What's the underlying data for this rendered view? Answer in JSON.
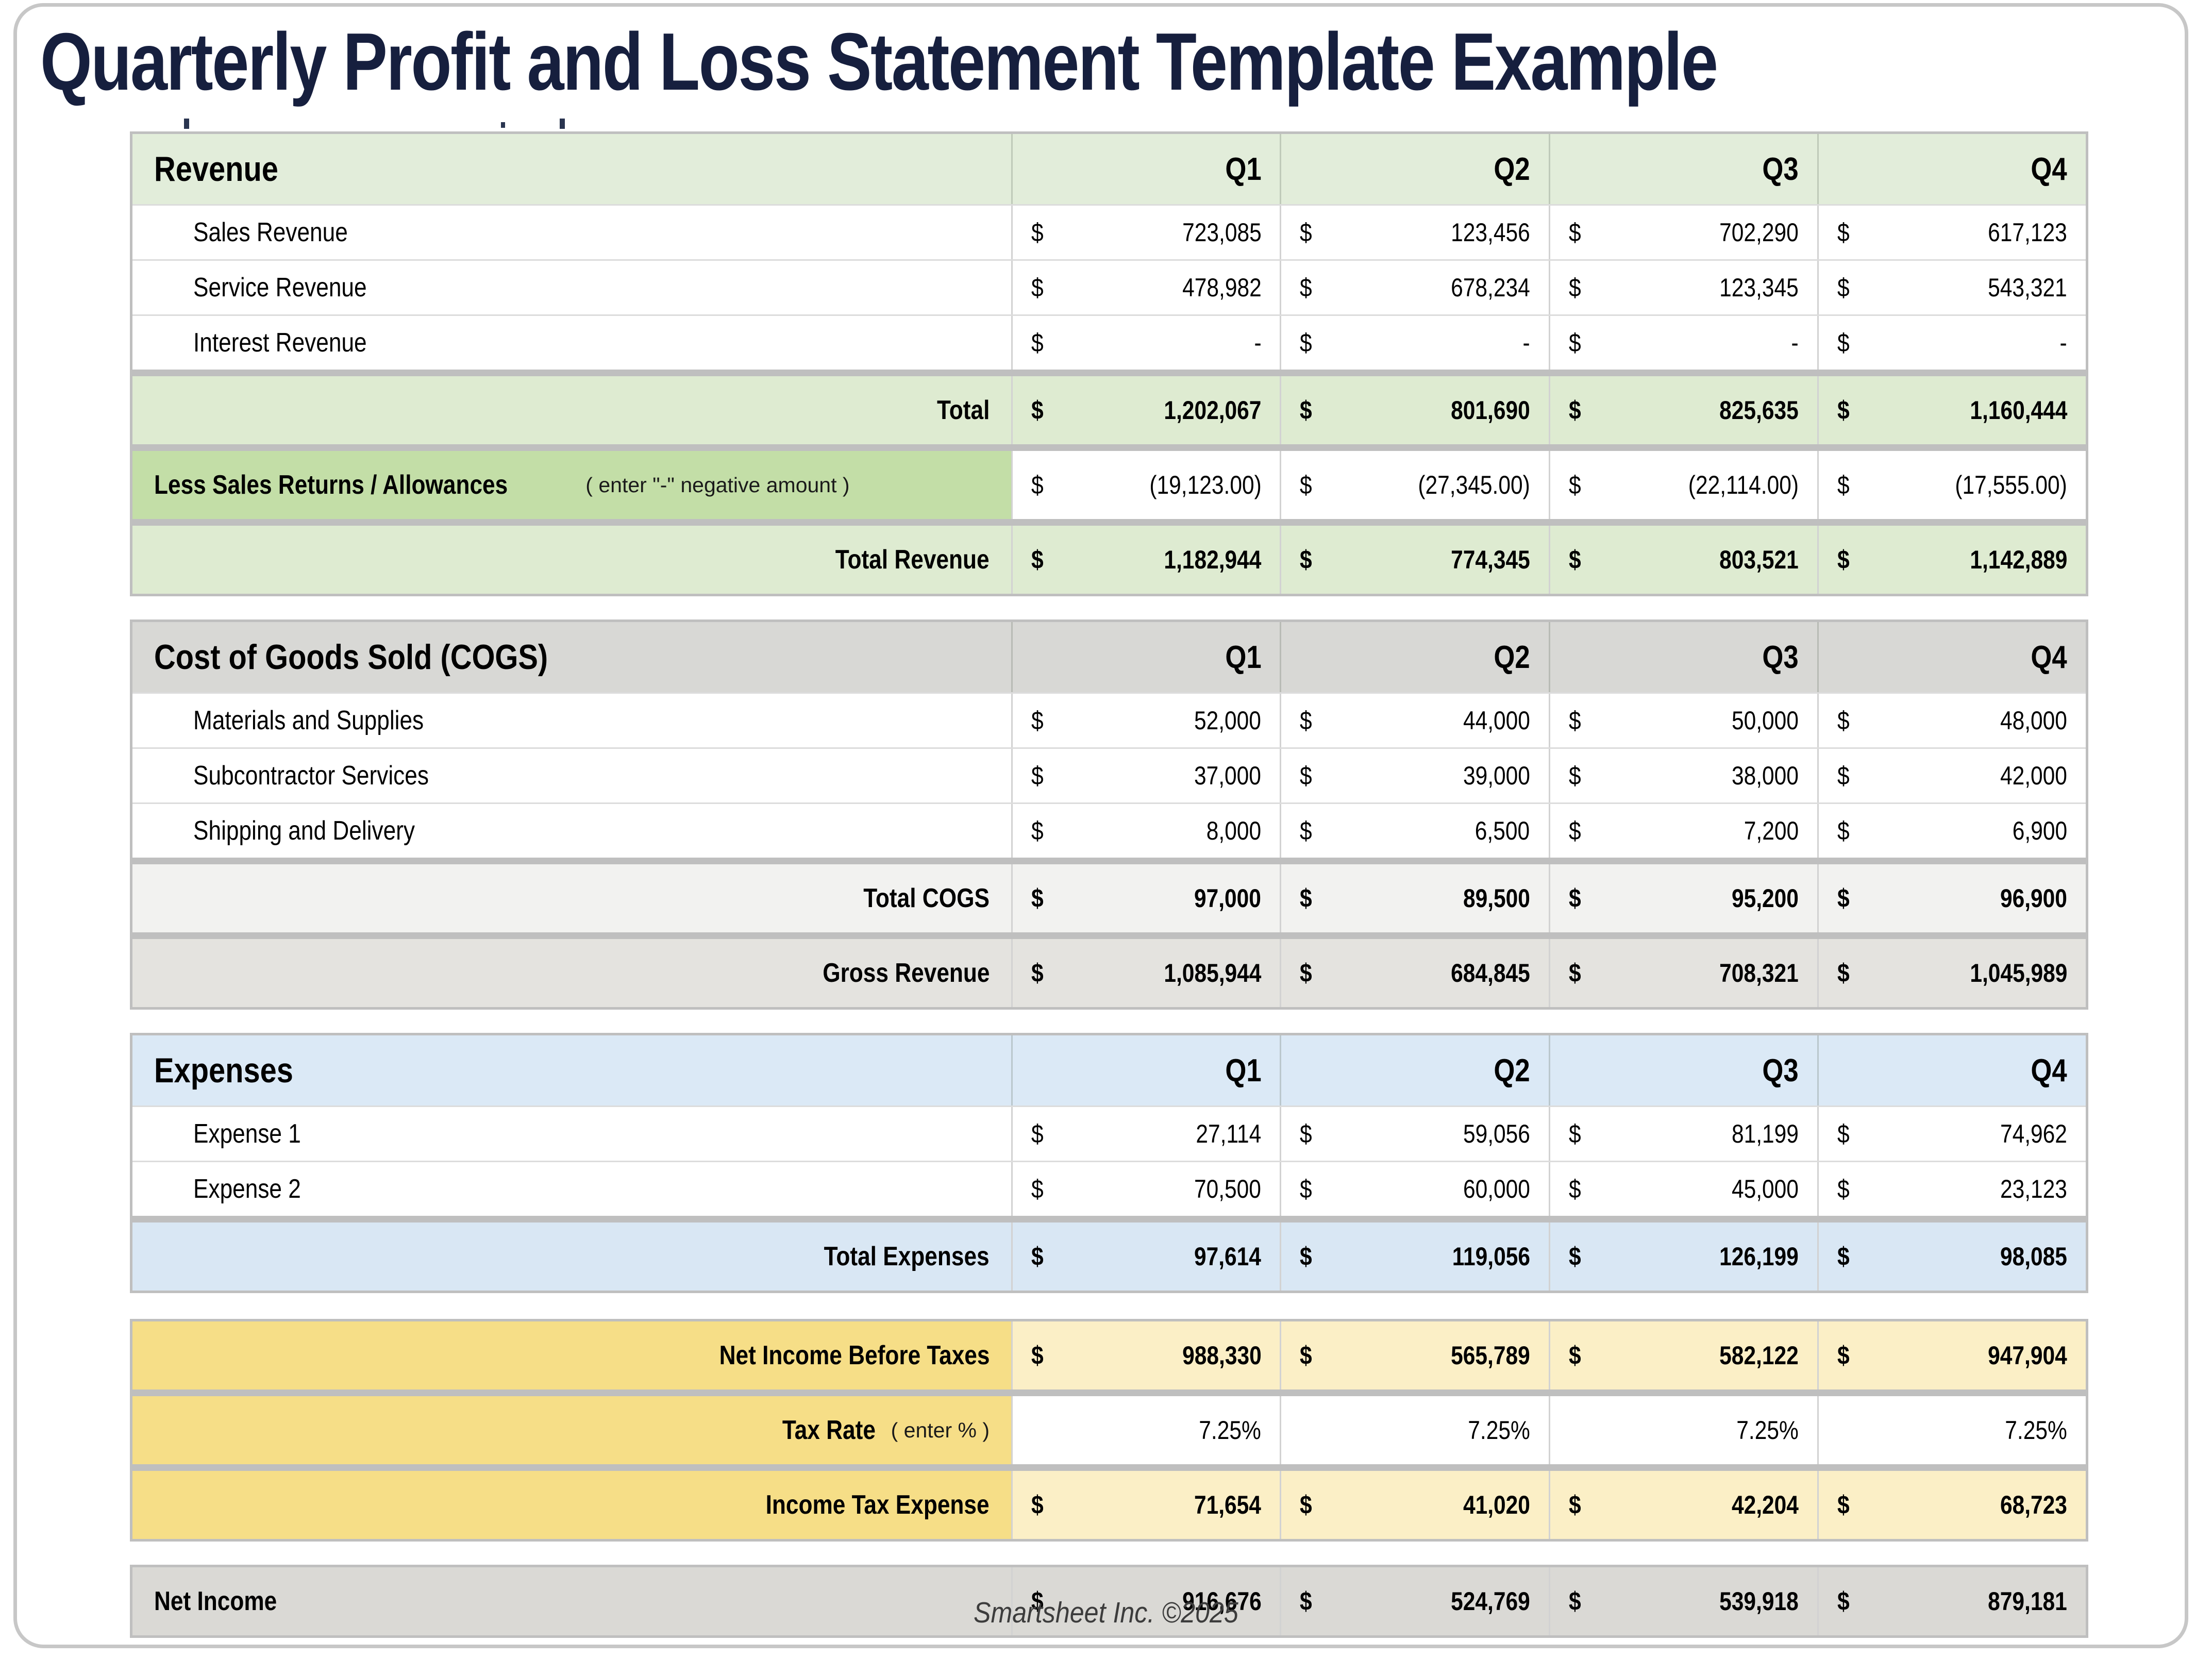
{
  "page": {
    "title": "Quarterly Profit and Loss Statement Template Example",
    "footer": "Smartsheet Inc. ©2025",
    "currency": "$"
  },
  "columns": [
    "Q1",
    "Q2",
    "Q3",
    "Q4"
  ],
  "colors": {
    "green_header": "#E2EDDA",
    "green_total": "#DEEBD1",
    "green_medium": "#C3DEA7",
    "gray_header": "#D8D8D5",
    "gray_light": "#F2F2F0",
    "gray_mid": "#E4E3DF",
    "gray_net": "#DAD9D5",
    "blue_header": "#DBE9F6",
    "blue_total": "#D9E7F4",
    "yellow_label": "#F6DE87",
    "yellow_value": "#FBEFC6",
    "white": "#FFFFFF",
    "separator": "#BFBFBF",
    "title_navy": "#161F3E",
    "footer_text": "#3C3C3C"
  },
  "sections": [
    {
      "id": "revenue",
      "header": "Revenue",
      "columns_header": true,
      "header_bg": "green_header",
      "rows": [
        {
          "kind": "detail",
          "label": "Sales Revenue",
          "currency": true,
          "values": [
            "723,085",
            "123,456",
            "702,290",
            "617,123"
          ],
          "label_bg": "white",
          "value_bg": "white",
          "bold": false,
          "sep": false
        },
        {
          "kind": "detail",
          "label": "Service Revenue",
          "currency": true,
          "values": [
            "478,982",
            "678,234",
            "123,345",
            "543,321"
          ],
          "label_bg": "white",
          "value_bg": "white",
          "bold": false,
          "sep": false
        },
        {
          "kind": "detail",
          "label": "Interest Revenue",
          "currency": true,
          "values": [
            "-",
            "-",
            "-",
            "-"
          ],
          "label_bg": "white",
          "value_bg": "white",
          "bold": false,
          "sep": false
        },
        {
          "kind": "summary",
          "label": "Total",
          "currency": true,
          "values": [
            "1,202,067",
            "801,690",
            "825,635",
            "1,160,444"
          ],
          "label_bg": "green_total",
          "value_bg": "green_total",
          "bold": true,
          "sep": true
        },
        {
          "kind": "less",
          "label": "Less Sales Returns / Allowances",
          "note": "( enter \"-\" negative amount )",
          "currency": true,
          "values": [
            "(19,123.00)",
            "(27,345.00)",
            "(22,114.00)",
            "(17,555.00)"
          ],
          "label_bg": "green_medium",
          "value_bg": "white",
          "bold": false,
          "sep": true
        },
        {
          "kind": "summary",
          "label": "Total Revenue",
          "currency": true,
          "values": [
            "1,182,944",
            "774,345",
            "803,521",
            "1,142,889"
          ],
          "label_bg": "green_total",
          "value_bg": "green_total",
          "bold": true,
          "sep": true
        }
      ]
    },
    {
      "id": "cogs",
      "header": "Cost of Goods Sold (COGS)",
      "columns_header": true,
      "header_bg": "gray_header",
      "rows": [
        {
          "kind": "detail",
          "label": "Materials and Supplies",
          "currency": true,
          "values": [
            "52,000",
            "44,000",
            "50,000",
            "48,000"
          ],
          "label_bg": "white",
          "value_bg": "white",
          "bold": false,
          "sep": false
        },
        {
          "kind": "detail",
          "label": "Subcontractor Services",
          "currency": true,
          "values": [
            "37,000",
            "39,000",
            "38,000",
            "42,000"
          ],
          "label_bg": "white",
          "value_bg": "white",
          "bold": false,
          "sep": false
        },
        {
          "kind": "detail",
          "label": "Shipping and Delivery",
          "currency": true,
          "values": [
            "8,000",
            "6,500",
            "7,200",
            "6,900"
          ],
          "label_bg": "white",
          "value_bg": "white",
          "bold": false,
          "sep": false
        },
        {
          "kind": "summary",
          "label": "Total COGS",
          "currency": true,
          "values": [
            "97,000",
            "89,500",
            "95,200",
            "96,900"
          ],
          "label_bg": "gray_light",
          "value_bg": "gray_light",
          "bold": true,
          "sep": true
        },
        {
          "kind": "summary",
          "label": "Gross Revenue",
          "currency": true,
          "values": [
            "1,085,944",
            "684,845",
            "708,321",
            "1,045,989"
          ],
          "label_bg": "gray_mid",
          "value_bg": "gray_mid",
          "bold": true,
          "sep": true
        }
      ]
    },
    {
      "id": "expenses",
      "header": "Expenses",
      "columns_header": true,
      "header_bg": "blue_header",
      "rows": [
        {
          "kind": "detail",
          "label": "Expense 1",
          "currency": true,
          "values": [
            "27,114",
            "59,056",
            "81,199",
            "74,962"
          ],
          "label_bg": "white",
          "value_bg": "white",
          "bold": false,
          "sep": false
        },
        {
          "kind": "detail",
          "label": "Expense 2",
          "currency": true,
          "values": [
            "70,500",
            "60,000",
            "45,000",
            "23,123"
          ],
          "label_bg": "white",
          "value_bg": "white",
          "bold": false,
          "sep": false
        },
        {
          "kind": "summary",
          "label": "Total Expenses",
          "currency": true,
          "values": [
            "97,614",
            "119,056",
            "126,199",
            "98,085"
          ],
          "label_bg": "blue_total",
          "value_bg": "blue_total",
          "bold": true,
          "sep": true
        }
      ]
    },
    {
      "id": "tax",
      "header": null,
      "columns_header": false,
      "rows": [
        {
          "kind": "tax",
          "label": "Net Income Before Taxes",
          "currency": true,
          "values": [
            "988,330",
            "565,789",
            "582,122",
            "947,904"
          ],
          "label_bg": "yellow_label",
          "value_bg": "yellow_value",
          "bold": true,
          "sep": false
        },
        {
          "kind": "tax",
          "label": "Tax Rate",
          "note": "( enter % )",
          "currency": false,
          "values": [
            "7.25%",
            "7.25%",
            "7.25%",
            "7.25%"
          ],
          "label_bg": "yellow_label",
          "value_bg": "white",
          "bold": false,
          "sep": true
        },
        {
          "kind": "tax",
          "label": "Income Tax Expense",
          "currency": true,
          "values": [
            "71,654",
            "41,020",
            "42,204",
            "68,723"
          ],
          "label_bg": "yellow_label",
          "value_bg": "yellow_value",
          "bold": true,
          "sep": true
        }
      ]
    },
    {
      "id": "net-income",
      "header": null,
      "columns_header": false,
      "rows": [
        {
          "kind": "net",
          "label": "Net Income",
          "currency": true,
          "values": [
            "916,676",
            "524,769",
            "539,918",
            "879,181"
          ],
          "label_bg": "gray_net",
          "value_bg": "gray_net",
          "bold": true,
          "sep": false
        }
      ]
    }
  ]
}
